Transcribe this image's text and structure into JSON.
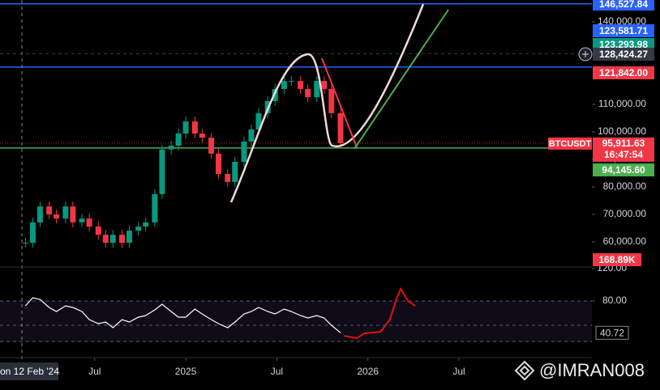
{
  "chart_data": [
    {
      "type": "candlestick",
      "x": [
        2024.12,
        2024.16,
        2024.2,
        2024.25,
        2024.29,
        2024.34,
        2024.38,
        2024.43,
        2024.47,
        2024.52,
        2024.56,
        2024.6,
        2024.65,
        2024.69,
        2024.74,
        2024.78,
        2024.83,
        2024.87,
        2024.92,
        2024.96,
        2025.0,
        2025.05,
        2025.09,
        2025.14,
        2025.18,
        2025.23,
        2025.27,
        2025.32,
        2025.36,
        2025.4,
        2025.45,
        2025.49,
        2025.54,
        2025.58,
        2025.63,
        2025.67,
        2025.72,
        2025.76,
        2025.8,
        2025.85
      ],
      "values": [
        59700,
        67100,
        72900,
        70000,
        68500,
        72900,
        67100,
        68500,
        65600,
        62600,
        59700,
        62600,
        59700,
        64100,
        65600,
        67100,
        77400,
        93600,
        95000,
        99400,
        103800,
        99400,
        97900,
        92100,
        84700,
        81800,
        89100,
        96500,
        100900,
        106800,
        111200,
        115600,
        118500,
        118500,
        115600,
        112600,
        118500,
        115600,
        106800,
        95900
      ],
      "up_color": "#089981",
      "down_color": "#f23645",
      "xlim": [
        2023.98,
        2027.23
      ],
      "xticks": [
        {
          "value": 2024.5,
          "label": "Jul"
        },
        {
          "value": 2025,
          "label": "2025"
        },
        {
          "value": 2025.5,
          "label": "Jul"
        },
        {
          "value": 2026,
          "label": "2026"
        },
        {
          "value": 2026.5,
          "label": "Jul"
        }
      ],
      "ylim": [
        51470,
        147940
      ],
      "yticks": [
        {
          "value": 60000,
          "label": "60,000.00"
        },
        {
          "value": 70000,
          "label": "70,000.00"
        },
        {
          "value": 80000,
          "label": "80,000.00"
        },
        {
          "value": 90000,
          "label": "90,000.00"
        },
        {
          "value": 100000,
          "label": "100,000.00"
        },
        {
          "value": 110000,
          "label": "110,000.00"
        },
        {
          "value": 140000,
          "label": "140,000.00"
        }
      ],
      "levels": [
        {
          "value": 146527.84,
          "label": "146,527.84",
          "color": "#2962ff",
          "line": "solid"
        },
        {
          "value": 123581.71,
          "label": "123,581.71",
          "color": "#2962ff",
          "line": "solid"
        },
        {
          "value": 123293.98,
          "label": "123,293.98",
          "color": "#089981"
        },
        {
          "value": 128424.27,
          "label": "128,424.27",
          "color": "#363a45",
          "line": "dashed"
        },
        {
          "value": 121842,
          "label": "121,842.00",
          "color": "#f23645"
        },
        {
          "value": 94145.6,
          "label": "94,145.60",
          "color": "#4caf50",
          "line": "solid"
        }
      ],
      "last_price": {
        "value": 95911.63,
        "label": "95,911.63",
        "countdown": "16:47:54",
        "symbol": "BTCUSDT",
        "color": "#f23645"
      },
      "volume_label": {
        "value": 168890,
        "label": "168.89K"
      },
      "crosshair_date": "on 12 Feb '24",
      "watermark": "@IMRAN008"
    },
    {
      "type": "line",
      "x": [
        2024.12,
        2024.16,
        2024.2,
        2024.25,
        2024.29,
        2024.34,
        2024.38,
        2024.43,
        2024.47,
        2024.52,
        2024.56,
        2024.6,
        2024.65,
        2024.69,
        2024.74,
        2024.78,
        2024.83,
        2024.87,
        2024.92,
        2024.96,
        2025.0,
        2025.05,
        2025.09,
        2025.14,
        2025.18,
        2025.23,
        2025.27,
        2025.32,
        2025.36,
        2025.4,
        2025.45,
        2025.49,
        2025.54,
        2025.58,
        2025.63,
        2025.67,
        2025.72,
        2025.76,
        2025.8,
        2025.85
      ],
      "values": [
        74,
        84,
        82,
        72,
        67,
        74,
        72,
        67,
        57,
        52,
        54,
        47,
        57,
        54,
        60,
        62,
        69,
        76,
        67,
        60,
        60,
        70,
        64,
        57,
        52,
        47,
        54,
        64,
        67,
        72,
        67,
        64,
        70,
        67,
        62,
        59,
        62,
        59,
        50,
        40.72
      ],
      "value_labels": [
        null,
        null,
        null,
        null,
        null,
        null,
        null,
        null,
        null,
        null,
        null,
        null,
        null,
        null,
        null,
        null,
        null,
        null,
        null,
        null,
        null,
        null,
        null,
        null,
        null,
        null,
        null,
        null,
        null,
        null,
        null,
        null,
        null,
        null,
        null,
        null,
        null,
        null,
        null,
        "40.72"
      ],
      "color": "#ffffff",
      "projection": {
        "x": [
          2025.87,
          2025.94,
          2025.98,
          2026.07,
          2026.12,
          2026.16,
          2026.18,
          2026.22,
          2026.26
        ],
        "values": [
          37,
          34,
          40,
          42,
          57,
          84,
          95,
          80,
          74
        ],
        "color": "#e01010"
      },
      "xlim": [
        2023.98,
        2027.23
      ],
      "ylim": [
        12,
        120
      ],
      "yticks": [
        {
          "value": 120,
          "label": "120.00"
        },
        {
          "value": 80,
          "label": "80.00"
        }
      ],
      "bands": [
        80,
        50,
        30
      ]
    }
  ]
}
